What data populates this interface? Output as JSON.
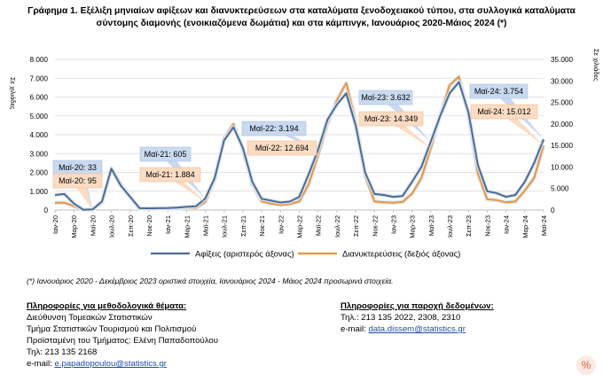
{
  "title_line1": "Γράφημα 1. Εξέλιξη μηνιαίων αφίξεων και διανυκτερεύσεων στα καταλύματα ξενοδοχειακού τύπου, στα συλλογικά καταλύματα",
  "title_line2": "σύντομης διαμονής (ενοικιαζόμενα δωμάτια) και στα κάμπινγκ, Ιανουάριος 2020-Μάιος 2024 (*)",
  "footnote": "(*) Ιανουάριος 2020 - Δεκέμβριος 2023 οριστικά στοιχεία, Ιανουάριος 2024 - Μάιος 2024 προσωρινά στοιχεία.",
  "methodology": {
    "header": "Πληροφορίες για μεθοδολογικά θέματα:",
    "line1": "Διεύθυνση Τομεακών Στατιστικών",
    "line2": "Τμήμα Στατιστικών Τουρισμού και Πολιτισμού",
    "line3": "Προϊσταμένη του Τμήματος: Ελένη Παπαδοπούλου",
    "line4": "Τηλ: 213 135 2168",
    "email_label": "e-mail: ",
    "email": "e.papadopoulou@statistics.gr"
  },
  "data_provision": {
    "header": "Πληροφορίες για παροχή δεδομένων:",
    "line1": "Τηλ.: 213 135 2022, 2308, 2310",
    "email_label": "e-mail: ",
    "email": "data.dissem@statistics.gr"
  },
  "icon": "percent-icon",
  "chart_data": {
    "type": "line",
    "ylabel": "Σε χιλιάδες",
    "y2label": "Σε χιλιάδες",
    "ylim": [
      0,
      8000
    ],
    "y2lim": [
      0,
      35000
    ],
    "yticks": [
      "0",
      "1.000",
      "2.000",
      "3.000",
      "4.000",
      "5.000",
      "6.000",
      "7.000",
      "8.000"
    ],
    "y2ticks": [
      "0",
      "5.000",
      "10.000",
      "15.000",
      "20.000",
      "25.000",
      "30.000",
      "35.000"
    ],
    "grid": true,
    "legend": "bottom",
    "x_tick_labels": [
      "Ιαν-20",
      "Μαϊ-20",
      "Σεπ-20",
      "Ιαν-21",
      "Μαϊ-21",
      "Σεπ-21",
      "Ιαν-22",
      "Μαϊ-22",
      "Σεπ-22",
      "Ιαν-23",
      "Μαϊ-23",
      "Σεπ-23",
      "Ιαν-24",
      "Μαϊ-24"
    ],
    "x_tick_labels_alt": [
      "Μαρ-20",
      "Ιουλ-20",
      "Νοε-20",
      "Μαρ-21",
      "Ιουλ-21",
      "Νοε-21",
      "Μαρ-22",
      "Ιουλ-22",
      "Νοε-22",
      "Μαρ-23",
      "Ιουλ-23",
      "Νοε-23",
      "Μαρ-24"
    ],
    "series": [
      {
        "name": "Αφίξεις (αριστερός άξονας)",
        "axis": "left",
        "color": "#4a6b96",
        "values": [
          800,
          850,
          350,
          20,
          33,
          450,
          2200,
          1300,
          700,
          100,
          90,
          100,
          110,
          130,
          170,
          200,
          605,
          1700,
          3700,
          4400,
          3300,
          1500,
          600,
          500,
          400,
          450,
          700,
          1900,
          3194,
          4800,
          5600,
          6200,
          4500,
          2000,
          850,
          800,
          700,
          750,
          1500,
          2300,
          3632,
          5000,
          6200,
          6800,
          5200,
          2400,
          1000,
          900,
          700,
          800,
          1500,
          2500,
          3754
        ]
      },
      {
        "name": "Διανυκτερεύσεις (δεξιός άξονας)",
        "axis": "right",
        "color": "#e8963f",
        "values": [
          1700,
          1700,
          900,
          70,
          95,
          1800,
          9700,
          6000,
          3000,
          300,
          300,
          300,
          350,
          400,
          500,
          500,
          1884,
          7000,
          16700,
          20000,
          14000,
          6000,
          2000,
          1500,
          1200,
          1400,
          2000,
          6000,
          12694,
          20000,
          25500,
          29500,
          20500,
          8000,
          2000,
          1800,
          1700,
          1900,
          3800,
          7500,
          14349,
          22000,
          29000,
          31000,
          22000,
          8500,
          2500,
          2300,
          1800,
          2000,
          4500,
          7500,
          15012
        ]
      }
    ],
    "annotations": [
      {
        "text": "Μαϊ-20: 33",
        "series": 0,
        "index": 4,
        "value": 33
      },
      {
        "text": "Μαϊ-20: 95",
        "series": 1,
        "index": 4,
        "value": 95
      },
      {
        "text": "Μαϊ-21: 605",
        "series": 0,
        "index": 16,
        "value": 605
      },
      {
        "text": "Μαϊ-21: 1.884",
        "series": 1,
        "index": 16,
        "value": 1884
      },
      {
        "text": "Μαϊ-22: 3.194",
        "series": 0,
        "index": 28,
        "value": 3194
      },
      {
        "text": "Μαϊ-22: 12.694",
        "series": 1,
        "index": 28,
        "value": 12694
      },
      {
        "text": "Μαϊ-23: 3.632",
        "series": 0,
        "index": 40,
        "value": 3632
      },
      {
        "text": "Μαϊ-23: 14.349",
        "series": 1,
        "index": 40,
        "value": 14349
      },
      {
        "text": "Μαϊ-24: 3.754",
        "series": 0,
        "index": 52,
        "value": 3754
      },
      {
        "text": "Μαϊ-24: 15.012",
        "series": 1,
        "index": 52,
        "value": 15012
      }
    ]
  }
}
